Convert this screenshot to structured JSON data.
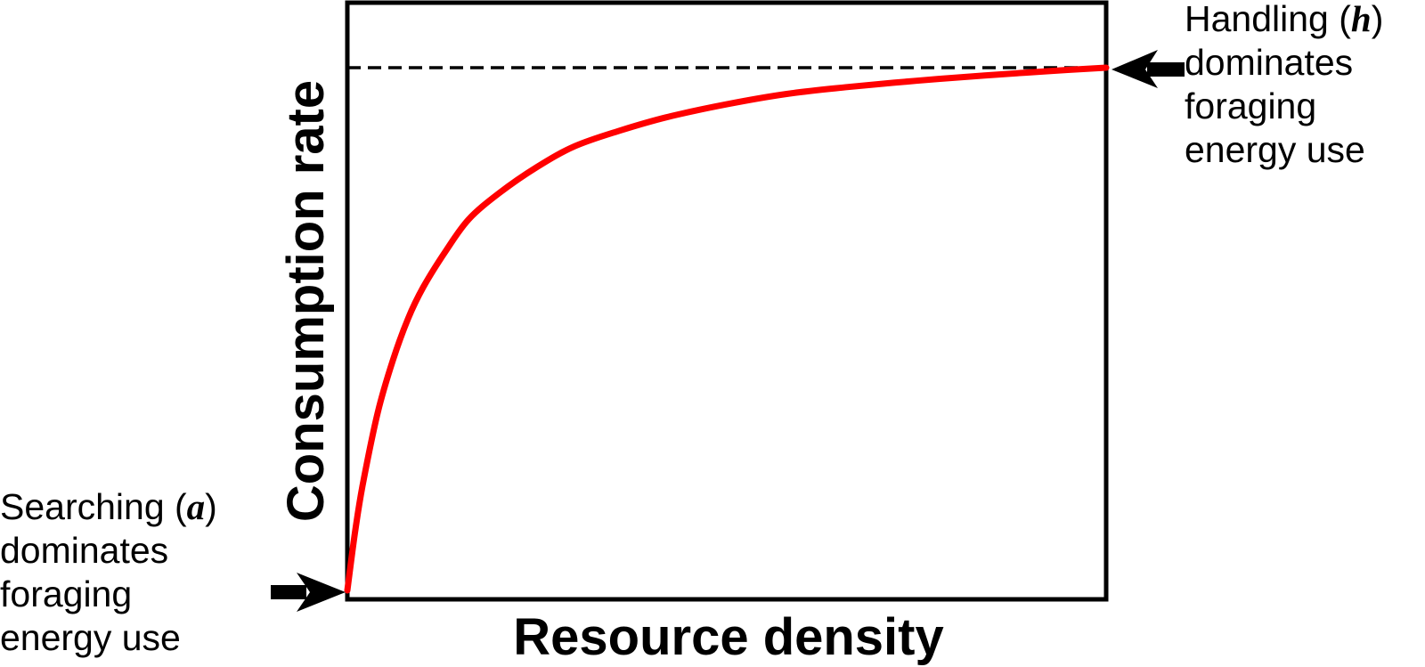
{
  "chart_data": {
    "type": "line",
    "xlabel": "Resource density",
    "ylabel": "Consumption rate",
    "xlim": [
      0,
      1
    ],
    "ylim": [
      0,
      1
    ],
    "grid": false,
    "series": [
      {
        "color": "#ff0000",
        "x": [
          0,
          0.01,
          0.02,
          0.04,
          0.06,
          0.08,
          0.1,
          0.13,
          0.16,
          0.2,
          0.25,
          0.3,
          0.36,
          0.42,
          0.5,
          0.58,
          0.66,
          0.75,
          0.84,
          0.92,
          1.0
        ],
        "y": [
          0,
          0.11,
          0.2,
          0.34,
          0.44,
          0.52,
          0.58,
          0.65,
          0.71,
          0.76,
          0.81,
          0.85,
          0.88,
          0.905,
          0.93,
          0.95,
          0.963,
          0.975,
          0.985,
          0.993,
          1.0
        ]
      }
    ],
    "asymptote": {
      "y": 1.0,
      "style": "dashed",
      "color": "#000000"
    }
  },
  "annotations": {
    "left": {
      "line1_text": "Searching (",
      "line1_var": "a",
      "line1_close": ")",
      "line2": "dominates",
      "line3": "foraging",
      "line4": "energy use"
    },
    "right": {
      "line1_text": "Handling (",
      "line1_var": "h",
      "line1_close": ")",
      "line2": "dominates",
      "line3": "foraging",
      "line4": "energy use"
    }
  },
  "colors": {
    "curve": "#ff0000",
    "axes": "#000000",
    "background": "#ffffff"
  }
}
